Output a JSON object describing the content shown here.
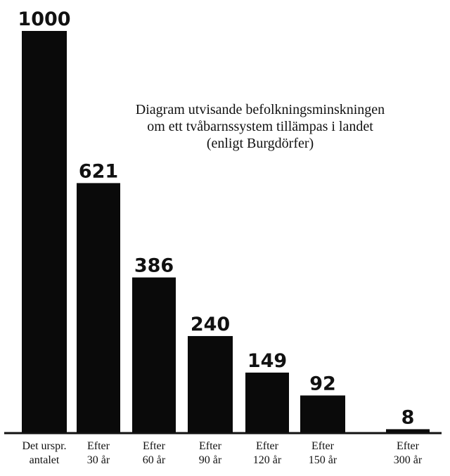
{
  "chart_data": {
    "type": "bar",
    "title_lines": [
      "Diagram utvisande befolkningsminskningen",
      "om ett tvåbarnssystem tillämpas i landet",
      "(enligt Burgdörfer)"
    ],
    "categories": [
      [
        "Det urspr.",
        "antalet"
      ],
      [
        "Efter",
        "30 år"
      ],
      [
        "Efter",
        "60 år"
      ],
      [
        "Efter",
        "90 år"
      ],
      [
        "Efter",
        "120 år"
      ],
      [
        "Efter",
        "150 år"
      ],
      [
        "Efter",
        "300 år"
      ]
    ],
    "values": [
      1000,
      621,
      386,
      240,
      149,
      92,
      8
    ],
    "value_labels": [
      "1000",
      "621",
      "386",
      "240",
      "149",
      "92",
      "8"
    ],
    "ylim": [
      0,
      1000
    ],
    "grid": false,
    "legend": "none",
    "bar_color": "#0a0a0a"
  }
}
